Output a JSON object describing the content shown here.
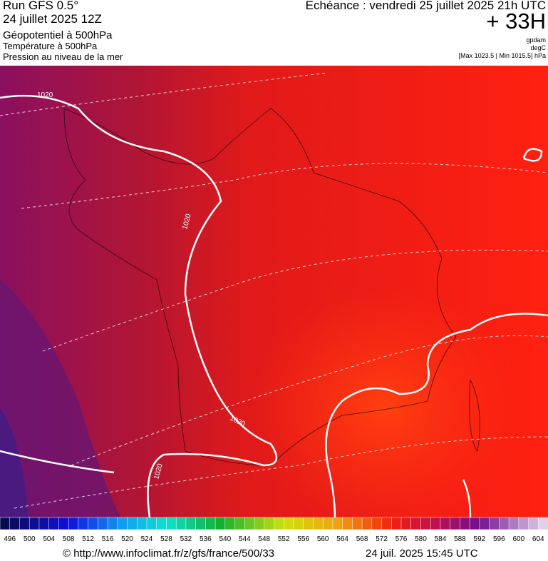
{
  "header": {
    "run": "Run GFS 0.5°",
    "date": "24 juillet 2025 12Z",
    "layer1": "Géopotentiel à 500hPa",
    "layer2": "Température à 500hPa",
    "layer3": "Pression au niveau de la mer",
    "valid": "Echéance : vendredi 25 juillet 2025 21h UTC",
    "lead": "+ 33H",
    "unit1": "gpdam",
    "unit2": "degC",
    "range": "[Max 1023.5 | Min 1015.5] hPa"
  },
  "map": {
    "isobar_labels": [
      "1020",
      "1020",
      "1020",
      "1020"
    ]
  },
  "colorbar": {
    "labels": [
      496,
      500,
      504,
      508,
      512,
      516,
      520,
      524,
      528,
      532,
      536,
      540,
      544,
      548,
      552,
      556,
      560,
      564,
      568,
      572,
      576,
      580,
      584,
      588,
      592,
      596,
      600,
      604
    ]
  },
  "footer": {
    "source": "© http://www.infoclimat.fr/z/gfs/france/500/33",
    "timestamp": "24 juil. 2025 15:45 UTC"
  }
}
